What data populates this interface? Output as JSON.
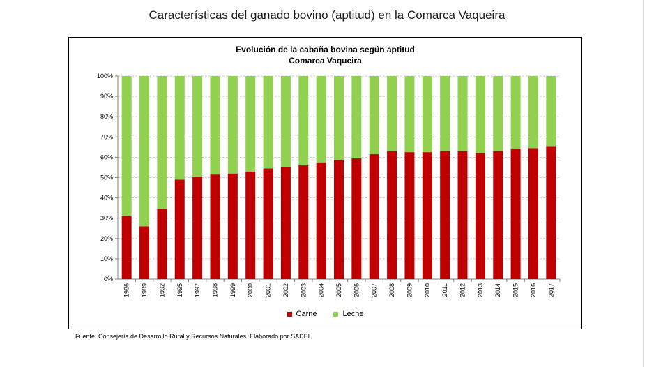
{
  "page": {
    "title": "Características del ganado bovino (aptitud) en la Comarca Vaqueira"
  },
  "chart": {
    "title_line1": "Evolución de la cabaña bovina según aptitud",
    "title_line2": "Comarca Vaqueira"
  },
  "source": "Fuente: Consejería de Desarrollo Rural y Recursos Naturales. Elaborado por SADEI.",
  "colors": {
    "carne": "#c00000",
    "leche": "#92d050"
  },
  "chart_data": {
    "type": "bar",
    "stacked": "percent",
    "title": "Evolución de la cabaña bovina según aptitud Comarca Vaqueira",
    "xlabel": "",
    "ylabel": "",
    "ylim": [
      0,
      100
    ],
    "y_ticks": [
      "0%",
      "10%",
      "20%",
      "30%",
      "40%",
      "50%",
      "60%",
      "70%",
      "80%",
      "90%",
      "100%"
    ],
    "legend_position": "bottom",
    "grid": true,
    "categories": [
      "1986",
      "1989",
      "1992",
      "1995",
      "1997",
      "1998",
      "1999",
      "2000",
      "2001",
      "2002",
      "2003",
      "2004",
      "2005",
      "2006",
      "2007",
      "2008",
      "2009",
      "2010",
      "2011",
      "2012",
      "2013",
      "2014",
      "2015",
      "2016",
      "2017"
    ],
    "series": [
      {
        "name": "Carne",
        "values": [
          31,
          26,
          34.5,
          49,
          50.5,
          51.5,
          52,
          53,
          54.5,
          55,
          56,
          57.5,
          58.5,
          59.5,
          61.5,
          63,
          62.5,
          62.5,
          63,
          63,
          62,
          63,
          64,
          64.5,
          65.5
        ]
      },
      {
        "name": "Leche",
        "values": [
          69,
          74,
          65.5,
          51,
          49.5,
          48.5,
          48,
          47,
          45.5,
          45,
          44,
          42.5,
          41.5,
          40.5,
          38.5,
          37,
          37.5,
          37.5,
          37,
          37,
          38,
          37,
          36,
          35.5,
          34.5
        ]
      }
    ]
  }
}
